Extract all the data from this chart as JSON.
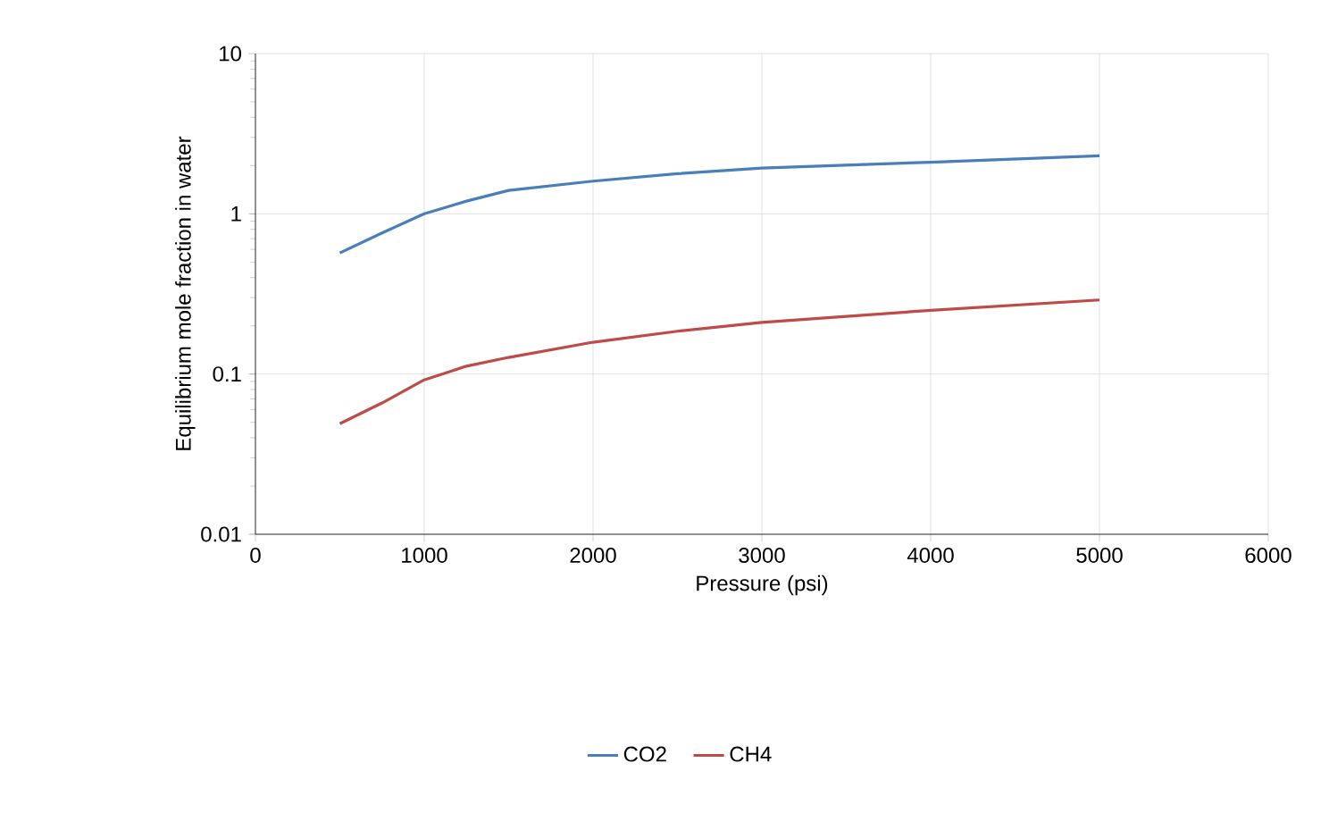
{
  "chart_data": {
    "type": "line",
    "xlabel": "Pressure (psi)",
    "ylabel": "Equilibrium mole fraction in water",
    "x": [
      500,
      750,
      1000,
      1250,
      1500,
      2000,
      2500,
      3000,
      4000,
      5000
    ],
    "series": [
      {
        "name": "CO2",
        "color": "#4a7ebb",
        "values": [
          0.57,
          0.76,
          1.0,
          1.2,
          1.4,
          1.6,
          1.78,
          1.93,
          2.1,
          2.3
        ]
      },
      {
        "name": "CH4",
        "color": "#be4b48",
        "values": [
          0.049,
          0.066,
          0.092,
          0.112,
          0.127,
          0.158,
          0.185,
          0.21,
          0.25,
          0.29
        ]
      }
    ],
    "xlim": [
      0,
      6000
    ],
    "xticks": [
      0,
      1000,
      2000,
      3000,
      4000,
      5000,
      6000
    ],
    "ylim": [
      0.01,
      10
    ],
    "yticks": [
      0.01,
      0.1,
      1,
      10
    ],
    "log": "y",
    "grid": true,
    "legend": "bottom"
  }
}
